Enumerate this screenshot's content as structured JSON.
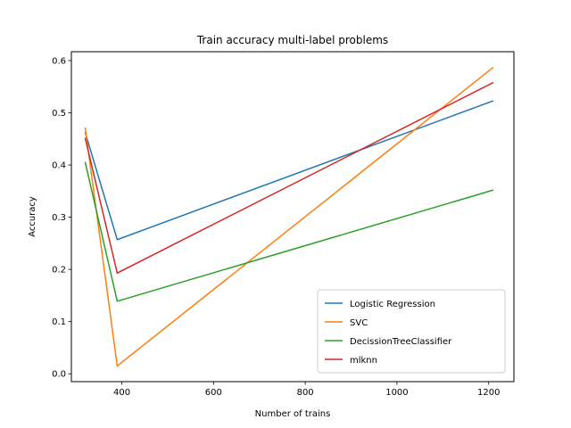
{
  "chart_data": {
    "type": "line",
    "title": "Train accuracy multi-label problems",
    "xlabel": "Number of trains",
    "ylabel": "Accuracy",
    "xlim": [
      290,
      1255
    ],
    "ylim": [
      -0.015,
      0.617
    ],
    "xticks": [
      400,
      600,
      800,
      1000,
      1200
    ],
    "yticks": [
      0.0,
      0.1,
      0.2,
      0.3,
      0.4,
      0.5,
      0.6
    ],
    "ytick_labels": [
      "0.0",
      "0.1",
      "0.2",
      "0.3",
      "0.4",
      "0.5",
      "0.6"
    ],
    "grid": false,
    "legend": "lower-right",
    "x": [
      320,
      390,
      1210
    ],
    "series": [
      {
        "name": "Logistic Regression",
        "color": "#1f77b4",
        "values": [
          0.463,
          0.257,
          0.523
        ]
      },
      {
        "name": "SVC",
        "color": "#ff7f0e",
        "values": [
          0.472,
          0.015,
          0.587
        ]
      },
      {
        "name": "DecissionTreeClassifier",
        "color": "#2ca02c",
        "values": [
          0.406,
          0.139,
          0.352
        ]
      },
      {
        "name": "mlknn",
        "color": "#d62728",
        "values": [
          0.452,
          0.193,
          0.558
        ]
      }
    ]
  }
}
